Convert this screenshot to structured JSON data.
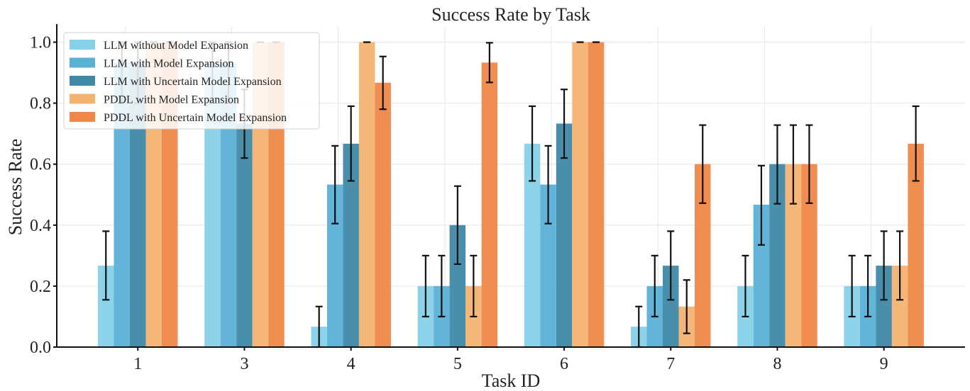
{
  "chart_data": {
    "type": "bar",
    "title": "Success Rate by Task",
    "xlabel": "Task ID",
    "ylabel": "Success Rate",
    "ylim": [
      0,
      1.05
    ],
    "yticks": [
      "0.0",
      "0.2",
      "0.4",
      "0.6",
      "0.8",
      "1.0"
    ],
    "ytick_values": [
      0,
      0.2,
      0.4,
      0.6,
      0.8,
      1.0
    ],
    "grid": true,
    "legend_position": "top-left",
    "categories": [
      "1",
      "3",
      "4",
      "5",
      "6",
      "7",
      "8",
      "9"
    ],
    "series": [
      {
        "name": "LLM without Model Expansion",
        "color": "#86d0e8",
        "values": [
          0.267,
          0.933,
          0.067,
          0.2,
          0.667,
          0.067,
          0.2,
          0.2
        ],
        "err_low": [
          0.155,
          0.8,
          0.0,
          0.1,
          0.545,
          0.0,
          0.1,
          0.1
        ],
        "err_high": [
          0.38,
          1.0,
          0.133,
          0.3,
          0.79,
          0.133,
          0.3,
          0.3
        ]
      },
      {
        "name": "LLM with Model Expansion",
        "color": "#5ab1d6",
        "values": [
          0.933,
          0.933,
          0.533,
          0.2,
          0.533,
          0.2,
          0.467,
          0.2
        ],
        "err_low": [
          0.8,
          0.8,
          0.405,
          0.1,
          0.405,
          0.1,
          0.335,
          0.1
        ],
        "err_high": [
          1.0,
          1.0,
          0.66,
          0.3,
          0.66,
          0.3,
          0.595,
          0.3
        ]
      },
      {
        "name": "LLM with Uncertain Model Expansion",
        "color": "#3f89a6",
        "values": [
          0.933,
          0.733,
          0.667,
          0.4,
          0.733,
          0.267,
          0.6,
          0.267
        ],
        "err_low": [
          0.8,
          0.62,
          0.545,
          0.272,
          0.62,
          0.155,
          0.47,
          0.155
        ],
        "err_high": [
          1.0,
          0.845,
          0.79,
          0.528,
          0.845,
          0.38,
          0.728,
          0.38
        ]
      },
      {
        "name": "PDDL with Model Expansion",
        "color": "#f3b370",
        "values": [
          1.0,
          1.0,
          1.0,
          0.2,
          1.0,
          0.133,
          0.6,
          0.267
        ],
        "err_low": [
          1.0,
          1.0,
          1.0,
          0.1,
          1.0,
          0.045,
          0.47,
          0.155
        ],
        "err_high": [
          1.0,
          1.0,
          1.0,
          0.3,
          1.0,
          0.22,
          0.728,
          0.38
        ]
      },
      {
        "name": "PDDL with Uncertain Model Expansion",
        "color": "#ef8748",
        "values": [
          1.0,
          1.0,
          0.867,
          0.933,
          1.0,
          0.6,
          0.6,
          0.667
        ],
        "err_low": [
          1.0,
          1.0,
          0.78,
          0.868,
          1.0,
          0.472,
          0.472,
          0.545
        ],
        "err_high": [
          1.0,
          1.0,
          0.953,
          0.998,
          1.0,
          0.728,
          0.728,
          0.79
        ]
      }
    ]
  }
}
